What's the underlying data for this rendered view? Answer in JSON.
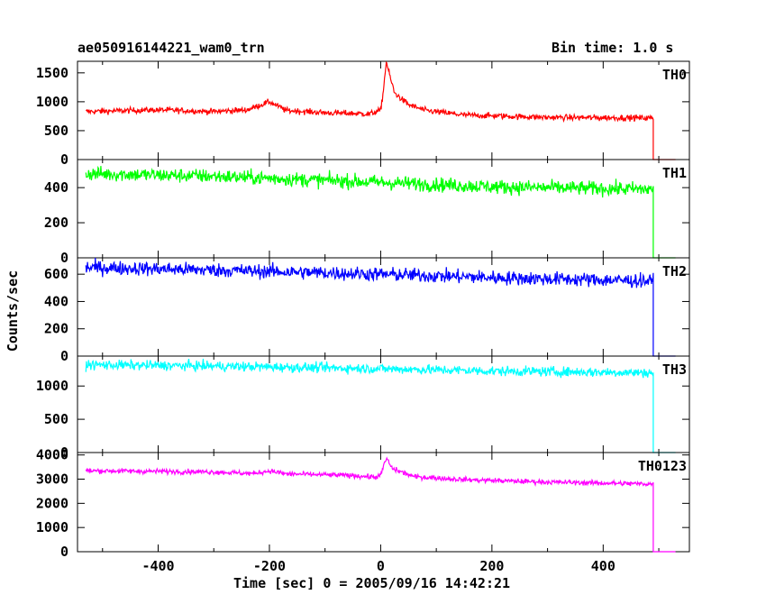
{
  "chart_data": {
    "type": "line",
    "title_left": "ae050916144221_wam0_trn",
    "title_right": "Bin time: 1.0 s",
    "xlabel": "Time [sec] 0 = 2005/09/16 14:42:21",
    "ylabel": "Counts/sec",
    "xlim": [
      -545,
      555
    ],
    "xticks": [
      -400,
      -200,
      0,
      200,
      400
    ],
    "data_range": [
      -530,
      490
    ],
    "panels": [
      {
        "name": "TH0",
        "color": "#ff0000",
        "ylim": [
          0,
          1700
        ],
        "yticks": [
          0,
          500,
          1000,
          1500
        ],
        "series": [
          {
            "t": -530,
            "v": 830
          },
          {
            "t": -400,
            "v": 860
          },
          {
            "t": -300,
            "v": 830
          },
          {
            "t": -240,
            "v": 860
          },
          {
            "t": -200,
            "v": 1000
          },
          {
            "t": -170,
            "v": 850
          },
          {
            "t": -100,
            "v": 810
          },
          {
            "t": -20,
            "v": 790
          },
          {
            "t": 0,
            "v": 850
          },
          {
            "t": 5,
            "v": 1200
          },
          {
            "t": 10,
            "v": 1700
          },
          {
            "t": 15,
            "v": 1500
          },
          {
            "t": 25,
            "v": 1150
          },
          {
            "t": 50,
            "v": 950
          },
          {
            "t": 80,
            "v": 850
          },
          {
            "t": 150,
            "v": 770
          },
          {
            "t": 300,
            "v": 730
          },
          {
            "t": 488,
            "v": 720
          }
        ],
        "noise": 35,
        "after_drop": 0
      },
      {
        "name": "TH1",
        "color": "#00ff00",
        "ylim": [
          0,
          560
        ],
        "yticks": [
          0,
          200,
          400
        ],
        "series": [
          {
            "t": -530,
            "v": 480
          },
          {
            "t": -300,
            "v": 465
          },
          {
            "t": 0,
            "v": 430
          },
          {
            "t": 200,
            "v": 405
          },
          {
            "t": 488,
            "v": 390
          }
        ],
        "noise": 28,
        "after_drop": 0
      },
      {
        "name": "TH2",
        "color": "#0000ff",
        "ylim": [
          0,
          720
        ],
        "yticks": [
          0,
          200,
          400,
          600
        ],
        "series": [
          {
            "t": -530,
            "v": 650
          },
          {
            "t": -300,
            "v": 630
          },
          {
            "t": 0,
            "v": 600
          },
          {
            "t": 200,
            "v": 575
          },
          {
            "t": 488,
            "v": 550
          }
        ],
        "noise": 35,
        "after_drop": 0
      },
      {
        "name": "TH3",
        "color": "#00ffff",
        "ylim": [
          0,
          1450
        ],
        "yticks": [
          0,
          500,
          1000
        ],
        "series": [
          {
            "t": -530,
            "v": 1320
          },
          {
            "t": -300,
            "v": 1300
          },
          {
            "t": 0,
            "v": 1260
          },
          {
            "t": 200,
            "v": 1225
          },
          {
            "t": 488,
            "v": 1200
          }
        ],
        "noise": 50,
        "after_drop": 0
      },
      {
        "name": "TH0123",
        "color": "#ff00ff",
        "ylim": [
          0,
          4100
        ],
        "yticks": [
          0,
          1000,
          2000,
          3000,
          4000
        ],
        "series": [
          {
            "t": -530,
            "v": 3350
          },
          {
            "t": -300,
            "v": 3300
          },
          {
            "t": -230,
            "v": 3230
          },
          {
            "t": -200,
            "v": 3340
          },
          {
            "t": -170,
            "v": 3220
          },
          {
            "t": -50,
            "v": 3150
          },
          {
            "t": -10,
            "v": 3080
          },
          {
            "t": 0,
            "v": 3150
          },
          {
            "t": 8,
            "v": 3750
          },
          {
            "t": 12,
            "v": 3820
          },
          {
            "t": 20,
            "v": 3450
          },
          {
            "t": 60,
            "v": 3100
          },
          {
            "t": 150,
            "v": 2980
          },
          {
            "t": 300,
            "v": 2880
          },
          {
            "t": 488,
            "v": 2800
          }
        ],
        "noise": 70,
        "after_drop": 0
      }
    ]
  }
}
